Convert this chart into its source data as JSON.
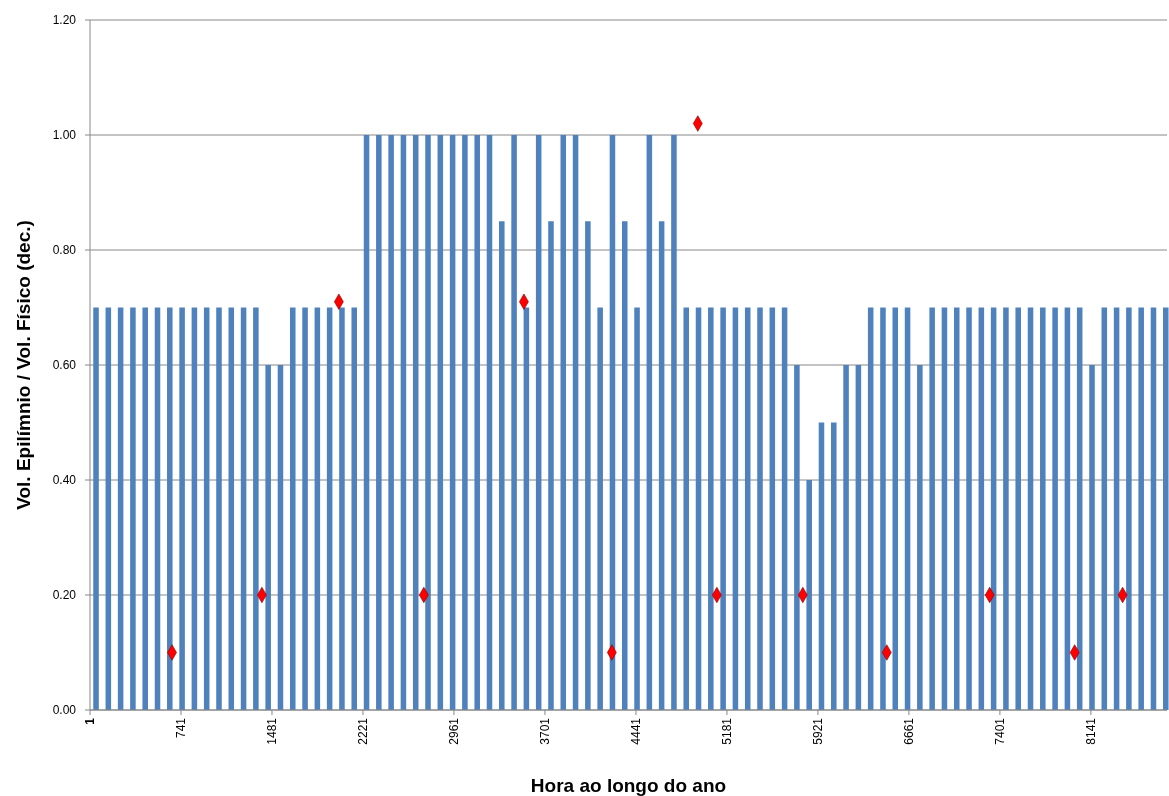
{
  "chart_data": {
    "type": "bar",
    "xlabel": "Hora ao longo do ano",
    "ylabel": "Vol. Epilímnio / Vol. Físico (dec.)",
    "xlim": [
      1,
      8760
    ],
    "xticks": [
      1,
      741,
      1481,
      2221,
      2961,
      3701,
      4441,
      5181,
      5921,
      6661,
      7401,
      8141
    ],
    "ylim": [
      0,
      1.2
    ],
    "yticks": [
      {
        "value": 0,
        "label": "0.00"
      },
      {
        "value": 0.2,
        "label": "0.20"
      },
      {
        "value": 0.4,
        "label": "0.40"
      },
      {
        "value": 0.6,
        "label": "0.60"
      },
      {
        "value": 0.8,
        "label": "0.80"
      },
      {
        "value": 1,
        "label": "1.00"
      },
      {
        "value": 1.2,
        "label": "1.20"
      }
    ],
    "grid": "y",
    "series": [
      {
        "color": "#4f81bd",
        "x": [
          50,
          150,
          250,
          350,
          450,
          550,
          650,
          750,
          850,
          950,
          1050,
          1150,
          1250,
          1350,
          1450,
          1550,
          1650,
          1750,
          1850,
          1950,
          2050,
          2150,
          2250,
          2350,
          2450,
          2550,
          2650,
          2750,
          2850,
          2950,
          3050,
          3150,
          3250,
          3350,
          3450,
          3550,
          3650,
          3750,
          3850,
          3950,
          4050,
          4150,
          4250,
          4350,
          4450,
          4550,
          4650,
          4750,
          4850,
          4950,
          5050,
          5150,
          5250,
          5350,
          5450,
          5550,
          5650,
          5750,
          5850,
          5950,
          6050,
          6150,
          6250,
          6350,
          6450,
          6550,
          6650,
          6750,
          6850,
          6950,
          7050,
          7150,
          7250,
          7350,
          7450,
          7550,
          7650,
          7750,
          7850,
          7950,
          8050,
          8150,
          8250,
          8350,
          8450,
          8550,
          8650,
          8750
        ],
        "values": [
          0.7,
          0.7,
          0.7,
          0.7,
          0.7,
          0.7,
          0.7,
          0.7,
          0.7,
          0.7,
          0.7,
          0.7,
          0.7,
          0.7,
          0.6,
          0.6,
          0.7,
          0.7,
          0.7,
          0.7,
          0.7,
          0.7,
          1.0,
          1.0,
          1.0,
          1.0,
          1.0,
          1.0,
          1.0,
          1.0,
          1.0,
          1.0,
          1.0,
          0.85,
          1.0,
          0.7,
          1.0,
          0.85,
          1.0,
          1.0,
          0.85,
          0.7,
          1.0,
          0.85,
          0.7,
          1.0,
          0.85,
          1.0,
          0.7,
          0.7,
          0.7,
          0.7,
          0.7,
          0.7,
          0.7,
          0.7,
          0.7,
          0.6,
          0.4,
          0.5,
          0.5,
          0.6,
          0.6,
          0.7,
          0.7,
          0.7,
          0.7,
          0.6,
          0.7,
          0.7,
          0.7,
          0.7,
          0.7,
          0.7,
          0.7,
          0.7,
          0.7,
          0.7,
          0.7,
          0.7,
          0.7,
          0.6,
          0.7,
          0.7,
          0.7,
          0.7,
          0.7,
          0.7
        ]
      },
      {
        "type": "scatter",
        "color": "#ff0000",
        "marker": "diamond",
        "x": [
          668,
          1399,
          2025,
          2716,
          3530,
          4245,
          4944,
          5099,
          5798,
          6481,
          7318,
          8009,
          8399
        ],
        "values": [
          0.1,
          0.2,
          0.71,
          0.2,
          0.71,
          0.1,
          1.02,
          0.2,
          0.2,
          0.1,
          0.2,
          0.1,
          0.2
        ]
      }
    ]
  }
}
